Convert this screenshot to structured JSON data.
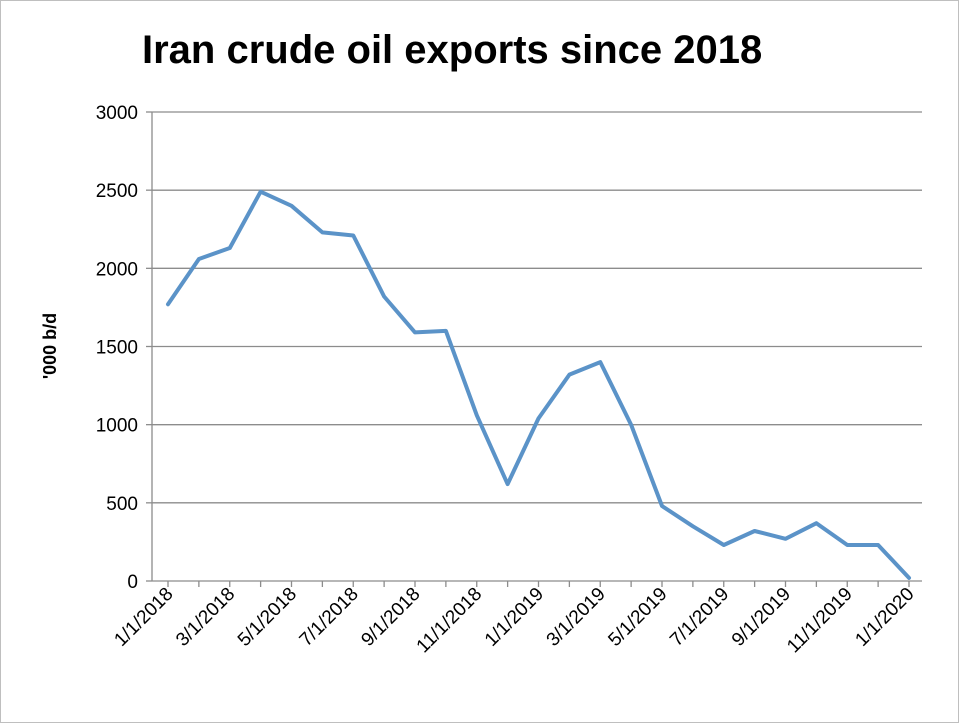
{
  "chart_data": {
    "type": "line",
    "title": "Iran crude oil exports since 2018",
    "xlabel": "",
    "ylabel": "'000 b/d",
    "ylim": [
      0,
      3000
    ],
    "yticks": [
      "0",
      "500",
      "1000",
      "1500",
      "2000",
      "2500",
      "3000"
    ],
    "xticks": [
      "1/1/2018",
      "3/1/2018",
      "5/1/2018",
      "7/1/2018",
      "9/1/2018",
      "11/1/2018",
      "1/1/2019",
      "3/1/2019",
      "5/1/2019",
      "7/1/2019",
      "9/1/2019",
      "11/1/2019",
      "1/1/2020"
    ],
    "grid": true,
    "legend": "none",
    "series_color": "#5b93c8",
    "x": [
      "1/1/2018",
      "2/1/2018",
      "3/1/2018",
      "4/1/2018",
      "5/1/2018",
      "6/1/2018",
      "7/1/2018",
      "8/1/2018",
      "9/1/2018",
      "10/1/2018",
      "11/1/2018",
      "12/1/2018",
      "1/1/2019",
      "2/1/2019",
      "3/1/2019",
      "4/1/2019",
      "5/1/2019",
      "6/1/2019",
      "7/1/2019",
      "8/1/2019",
      "9/1/2019",
      "10/1/2019",
      "11/1/2019",
      "12/1/2019",
      "1/1/2020"
    ],
    "values": [
      1770,
      2060,
      2130,
      2490,
      2400,
      2230,
      2210,
      1820,
      1590,
      1600,
      1060,
      620,
      1040,
      1320,
      1400,
      1000,
      480,
      350,
      230,
      320,
      270,
      370,
      230,
      230,
      20
    ]
  }
}
